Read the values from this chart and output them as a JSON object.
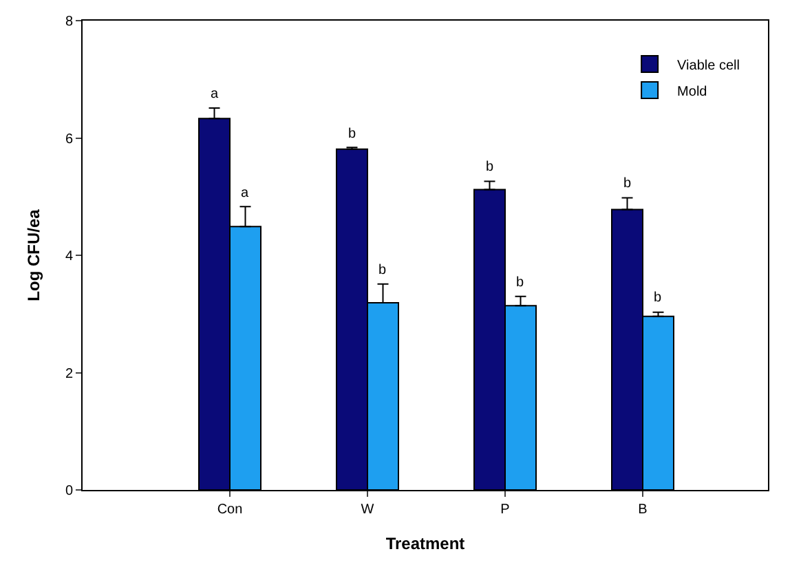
{
  "chart_data": {
    "type": "bar",
    "xlabel": "Treatment",
    "ylabel": "Log CFU/ea",
    "categories": [
      "Con",
      "W",
      "P",
      "B"
    ],
    "series": [
      {
        "name": "Viable cell",
        "color": "#0a0a78",
        "values": [
          6.33,
          5.81,
          5.12,
          4.78
        ],
        "errors": [
          [
            6.33,
            6.51
          ],
          [
            5.81,
            5.84
          ],
          [
            5.12,
            5.26
          ],
          [
            4.78,
            4.98
          ]
        ],
        "value_labels": [
          "a",
          "b",
          "b",
          "b"
        ]
      },
      {
        "name": "Mold",
        "color": "#1e9ff0",
        "values": [
          4.49,
          3.19,
          3.14,
          2.96
        ],
        "errors": [
          [
            4.49,
            4.83
          ],
          [
            3.19,
            3.51
          ],
          [
            3.14,
            3.3
          ],
          [
            2.96,
            3.03
          ]
        ],
        "value_labels": [
          "a",
          "b",
          "b",
          "b"
        ]
      }
    ],
    "ylim": [
      0,
      8
    ],
    "yticks": [
      0,
      2,
      4,
      6,
      8
    ],
    "legend": "top right"
  }
}
